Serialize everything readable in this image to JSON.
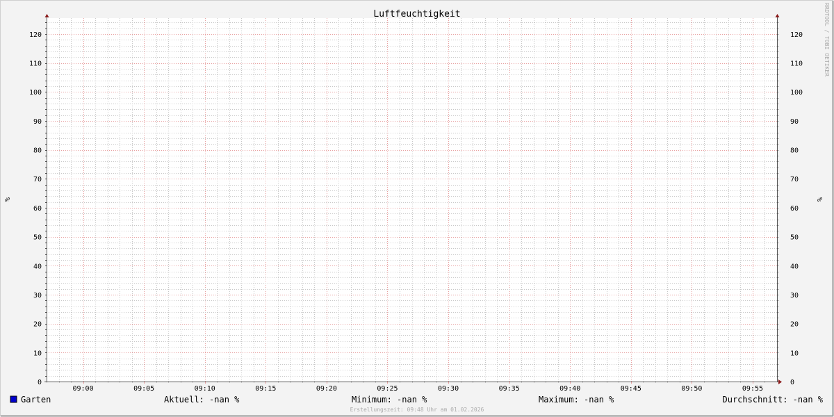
{
  "chart_data": {
    "type": "line",
    "title": "Luftfeuchtigkeit",
    "ylabel": "%",
    "ylabel_right": "%",
    "watermark": "RRDTOOL / TOBI OETIKER",
    "xlim": [
      "08:57",
      "09:57"
    ],
    "ylim": [
      0,
      125
    ],
    "x_ticks": [
      "09:00",
      "09:05",
      "09:10",
      "09:15",
      "09:20",
      "09:25",
      "09:30",
      "09:35",
      "09:40",
      "09:45",
      "09:50",
      "09:55"
    ],
    "y_ticks": [
      0,
      10,
      20,
      30,
      40,
      50,
      60,
      70,
      80,
      90,
      100,
      110,
      120
    ],
    "grid": true,
    "series": [
      {
        "name": "Garten",
        "color": "#0000cc",
        "values": []
      }
    ],
    "legend": {
      "placement": "bottom",
      "entries": [
        {
          "name": "Garten",
          "color": "#0000cc"
        }
      ],
      "stats": {
        "current": "Aktuell: -nan %",
        "minimum": "Minimum: -nan %",
        "maximum": "Maximum: -nan %",
        "average": "Durchschnitt: -nan %"
      }
    },
    "footer": "Erstellungszeit: 09:48 Uhr am 01.02.2026",
    "colors": {
      "background": "#f3f3f3",
      "canvas": "#ffffff",
      "major_grid": "#e8a0a0",
      "minor_grid": "#c8c8c8",
      "axis": "#555555",
      "arrow": "#8b1a1a"
    }
  }
}
